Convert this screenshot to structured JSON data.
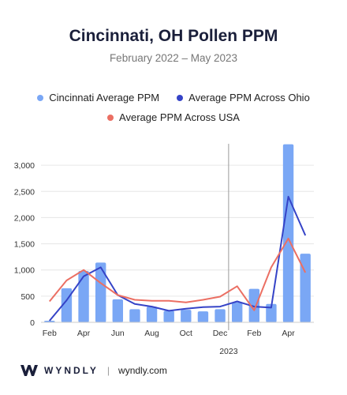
{
  "title": "Cincinnati, OH Pollen PPM",
  "subtitle": "February 2022 – May 2023",
  "legend": [
    {
      "label": "Cincinnati Average PPM",
      "color": "#7aa7f5"
    },
    {
      "label": "Average PPM Across Ohio",
      "color": "#3543c7"
    },
    {
      "label": "Average PPM Across USA",
      "color": "#eb6f63"
    }
  ],
  "brand": {
    "name": "WYNDLY",
    "url": "wyndly.com"
  },
  "chart_data": {
    "type": "bar",
    "categories": [
      "Feb 2022",
      "Mar 2022",
      "Apr 2022",
      "May 2022",
      "Jun 2022",
      "Jul 2022",
      "Aug 2022",
      "Sep 2022",
      "Oct 2022",
      "Nov 2022",
      "Dec 2022",
      "Jan 2023",
      "Feb 2023",
      "Mar 2023",
      "Apr 2023",
      "May 2023"
    ],
    "x_tick_labels": [
      "Feb",
      "",
      "Apr",
      "",
      "Jun",
      "",
      "Aug",
      "",
      "Oct",
      "",
      "Dec",
      "",
      "Feb",
      "",
      "Apr",
      ""
    ],
    "x_year_label": "2023",
    "series": [
      {
        "name": "Cincinnati Average PPM",
        "kind": "bar",
        "color": "#7aa7f5",
        "values": [
          30,
          650,
          980,
          1140,
          440,
          250,
          300,
          220,
          240,
          210,
          250,
          380,
          640,
          350,
          3400,
          1310
        ]
      },
      {
        "name": "Average PPM Across Ohio",
        "kind": "line",
        "color": "#3543c7",
        "values": [
          30,
          420,
          880,
          1050,
          520,
          350,
          300,
          220,
          260,
          290,
          300,
          400,
          300,
          280,
          2400,
          1660
        ]
      },
      {
        "name": "Average PPM Across USA",
        "kind": "line",
        "color": "#eb6f63",
        "values": [
          400,
          800,
          1000,
          750,
          520,
          430,
          410,
          410,
          380,
          430,
          490,
          690,
          230,
          1050,
          1600,
          950
        ]
      }
    ],
    "ylim": [
      0,
      3500
    ],
    "yticks": [
      0,
      500,
      1000,
      1500,
      2000,
      2500,
      3000
    ],
    "ytick_labels": [
      "0",
      "500",
      "1,000",
      "1,500",
      "2,000",
      "2,500",
      "3,000"
    ],
    "year_divider_after": "Dec 2022",
    "grid": true,
    "legend_position": "top"
  }
}
